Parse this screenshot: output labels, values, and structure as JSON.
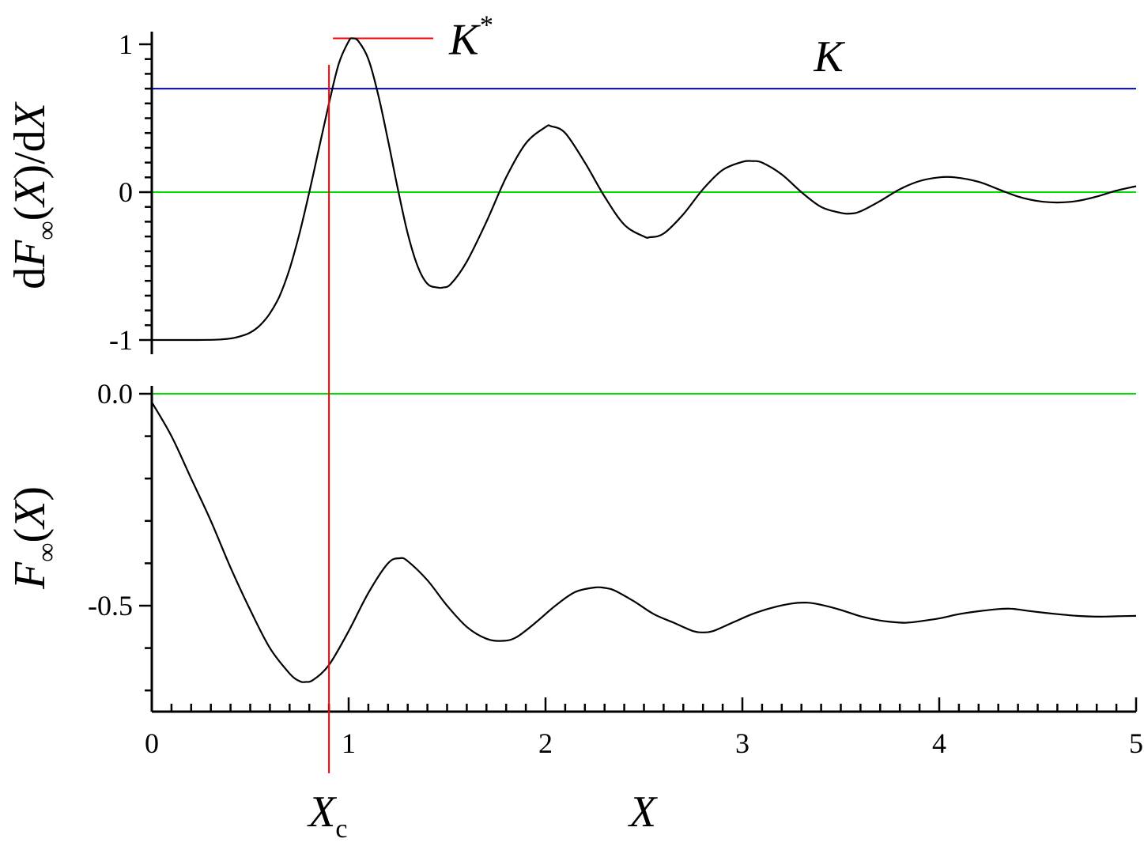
{
  "chart_data": [
    {
      "type": "line",
      "panel": "top",
      "ylabel": {
        "d1": "d",
        "F": "F",
        "inf": "∞",
        "open": "(",
        "X": "X",
        "close": ")/d",
        "X2": "X"
      },
      "xlim": [
        0,
        5
      ],
      "ylim": [
        -1.1,
        1.1
      ],
      "yticks": [
        {
          "value": 1,
          "label": "1"
        },
        {
          "value": 0,
          "label": "0"
        },
        {
          "value": -1,
          "label": "-1"
        }
      ],
      "y_minor_step": 0.1,
      "series": [
        {
          "color": "#000000",
          "x": [
            0,
            0.1,
            0.2,
            0.3,
            0.35,
            0.4,
            0.45,
            0.5,
            0.55,
            0.6,
            0.65,
            0.7,
            0.75,
            0.8,
            0.85,
            0.9,
            0.95,
            1.0,
            1.02,
            1.05,
            1.1,
            1.15,
            1.2,
            1.25,
            1.3,
            1.35,
            1.4,
            1.45,
            1.48,
            1.52,
            1.6,
            1.7,
            1.8,
            1.9,
            2.0,
            2.03,
            2.1,
            2.2,
            2.3,
            2.4,
            2.5,
            2.53,
            2.6,
            2.7,
            2.8,
            2.9,
            3.0,
            3.05,
            3.1,
            3.2,
            3.3,
            3.4,
            3.5,
            3.55,
            3.6,
            3.7,
            3.8,
            3.9,
            4.0,
            4.08,
            4.2,
            4.3,
            4.4,
            4.5,
            4.6,
            4.7,
            4.8,
            4.9,
            5.0
          ],
          "y": [
            -1.0,
            -1.0,
            -1.0,
            -0.999,
            -0.996,
            -0.99,
            -0.975,
            -0.95,
            -0.9,
            -0.82,
            -0.7,
            -0.52,
            -0.28,
            0.0,
            0.3,
            0.6,
            0.87,
            1.02,
            1.04,
            1.02,
            0.9,
            0.66,
            0.35,
            0.02,
            -0.28,
            -0.5,
            -0.62,
            -0.645,
            -0.645,
            -0.62,
            -0.47,
            -0.2,
            0.1,
            0.33,
            0.44,
            0.445,
            0.4,
            0.2,
            -0.03,
            -0.22,
            -0.3,
            -0.305,
            -0.28,
            -0.15,
            0.02,
            0.15,
            0.205,
            0.21,
            0.2,
            0.12,
            0.0,
            -0.1,
            -0.14,
            -0.145,
            -0.13,
            -0.06,
            0.02,
            0.075,
            0.1,
            0.1,
            0.07,
            0.02,
            -0.03,
            -0.06,
            -0.07,
            -0.06,
            -0.03,
            0.01,
            0.04
          ]
        }
      ],
      "reference_lines": [
        {
          "orientation": "horizontal",
          "y": 0.7,
          "color": "#0000cc",
          "label": "K"
        },
        {
          "orientation": "horizontal",
          "y": 0,
          "color": "#00dd00"
        },
        {
          "orientation": "segment",
          "y": 1.04,
          "x_from": 0.92,
          "x_to": 1.43,
          "color": "#ff0000",
          "label": "K",
          "label_sup": "*"
        }
      ]
    },
    {
      "type": "line",
      "panel": "bottom",
      "ylabel": {
        "F": "F",
        "inf": "∞",
        "open": "(",
        "X": "X",
        "close": ")"
      },
      "xlabel": "X",
      "xlim": [
        0,
        5
      ],
      "ylim": [
        -0.75,
        0.02
      ],
      "xticks": [
        {
          "value": 0,
          "label": "0"
        },
        {
          "value": 1,
          "label": "1"
        },
        {
          "value": 2,
          "label": "2"
        },
        {
          "value": 3,
          "label": "3"
        },
        {
          "value": 4,
          "label": "4"
        },
        {
          "value": 5,
          "label": "5"
        }
      ],
      "x_minor_step": 0.1,
      "yticks": [
        {
          "value": 0,
          "label": "0.0"
        },
        {
          "value": -0.5,
          "label": "-0.5"
        }
      ],
      "y_minor_step": 0.1,
      "series": [
        {
          "color": "#000000",
          "x": [
            0,
            0.1,
            0.2,
            0.3,
            0.4,
            0.5,
            0.6,
            0.7,
            0.75,
            0.78,
            0.82,
            0.9,
            1.0,
            1.1,
            1.2,
            1.26,
            1.3,
            1.4,
            1.5,
            1.6,
            1.7,
            1.78,
            1.85,
            1.95,
            2.05,
            2.15,
            2.25,
            2.3,
            2.35,
            2.45,
            2.55,
            2.65,
            2.75,
            2.8,
            2.85,
            2.95,
            3.05,
            3.15,
            3.25,
            3.33,
            3.4,
            3.5,
            3.6,
            3.7,
            3.8,
            3.84,
            3.9,
            4.0,
            4.1,
            4.2,
            4.3,
            4.36,
            4.4,
            4.5,
            4.6,
            4.7,
            4.8,
            4.9,
            5.0
          ],
          "y": [
            -0.02,
            -0.1,
            -0.2,
            -0.3,
            -0.41,
            -0.51,
            -0.6,
            -0.66,
            -0.678,
            -0.68,
            -0.675,
            -0.64,
            -0.56,
            -0.47,
            -0.4,
            -0.388,
            -0.395,
            -0.44,
            -0.5,
            -0.55,
            -0.578,
            -0.583,
            -0.575,
            -0.54,
            -0.5,
            -0.468,
            -0.457,
            -0.458,
            -0.464,
            -0.49,
            -0.52,
            -0.54,
            -0.56,
            -0.563,
            -0.56,
            -0.54,
            -0.52,
            -0.505,
            -0.495,
            -0.493,
            -0.498,
            -0.51,
            -0.525,
            -0.535,
            -0.54,
            -0.54,
            -0.537,
            -0.53,
            -0.52,
            -0.513,
            -0.508,
            -0.507,
            -0.509,
            -0.515,
            -0.52,
            -0.524,
            -0.526,
            -0.525,
            -0.524
          ]
        }
      ],
      "reference_lines": [
        {
          "orientation": "horizontal",
          "y": 0,
          "color": "#00dd00"
        }
      ]
    }
  ],
  "annotations": {
    "crit_vertical_line": {
      "x": 0.9,
      "color": "#ff0000",
      "label": "X",
      "label_sub": "c"
    }
  }
}
